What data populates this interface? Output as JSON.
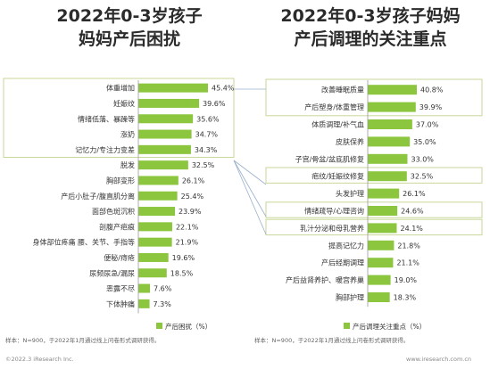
{
  "colors": {
    "bar": "#8cc63f",
    "highlight_border": "#c8d79a",
    "connector": "#9ab0cc",
    "text": "#333333",
    "bracket": "#7f7f7f"
  },
  "left": {
    "title_line1": "2022年0-3岁孩子",
    "title_line2": "妈妈产后困扰",
    "legend_label": "产后困扰（%）",
    "note": "样本：N=900，于2022年1月通过线上问卷形式调研获得。",
    "chart_data": {
      "type": "bar",
      "orientation": "horizontal",
      "unit": "%",
      "categories": [
        "体重增加",
        "妊娠纹",
        "情绪低落、暴躁等",
        "涨奶",
        "记忆力/专注力变差",
        "脱发",
        "胸部变形",
        "产后小肚子/腹直肌分离",
        "面部色斑沉积",
        "剖腹产疤痕",
        "身体部位疼痛 腰、关节、手指等",
        "便秘/痔疮",
        "尿频尿急/漏尿",
        "恶露不尽",
        "下体肿痛"
      ],
      "values": [
        45.4,
        39.6,
        35.6,
        34.7,
        34.3,
        32.5,
        26.1,
        25.4,
        23.9,
        22.1,
        21.9,
        19.6,
        18.5,
        7.6,
        7.3
      ],
      "value_labels": [
        "45.4%",
        "39.6%",
        "35.6%",
        "34.7%",
        "34.3%",
        "32.5%",
        "26.1%",
        "25.4%",
        "23.9%",
        "22.1%",
        "21.9%",
        "19.6%",
        "18.5%",
        "7.6%",
        "7.3%"
      ],
      "series": [
        {
          "name": "产后困扰（%）",
          "values": [
            45.4,
            39.6,
            35.6,
            34.7,
            34.3,
            32.5,
            26.1,
            25.4,
            23.9,
            22.1,
            21.9,
            19.6,
            18.5,
            7.6,
            7.3
          ]
        }
      ],
      "highlighted_top": 5
    }
  },
  "right": {
    "title_line1": "2022年0-3岁孩子妈妈",
    "title_line2": "产后调理的关注重点",
    "legend_label": "产后调理关注重点（%）",
    "note": "样本：N=900，于2022年1月通过线上问卷形式调研获得。",
    "chart_data": {
      "type": "bar",
      "orientation": "horizontal",
      "unit": "%",
      "categories": [
        "改善睡眠质量",
        "产后塑身/体重管理",
        "体质调理/补气血",
        "皮肤保养",
        "子宫/骨盆/盆底肌修复",
        "疤纹/妊娠纹修复",
        "头发护理",
        "情绪疏导/心理咨询",
        "乳汁分泌和母乳营养",
        "提高记忆力",
        "产后经期调理",
        "产后益肾养护、暖宫养巢",
        "胸部护理"
      ],
      "values": [
        40.8,
        39.9,
        37.0,
        35.0,
        33.0,
        32.5,
        26.1,
        24.6,
        24.1,
        21.8,
        21.1,
        19.0,
        18.3
      ],
      "value_labels": [
        "40.8%",
        "39.9%",
        "37.0%",
        "35.0%",
        "33.0%",
        "32.5%",
        "26.1%",
        "24.6%",
        "24.1%",
        "21.8%",
        "21.1%",
        "19.0%",
        "18.3%"
      ],
      "series": [
        {
          "name": "产后调理关注重点（%）",
          "values": [
            40.8,
            39.9,
            37.0,
            35.0,
            33.0,
            32.5,
            26.1,
            24.6,
            24.1,
            21.8,
            21.1,
            19.0,
            18.3
          ]
        }
      ]
    }
  },
  "footer": {
    "copyright": "©2022.3 iResearch Inc.",
    "website": "www.iresearch.com.cn"
  }
}
